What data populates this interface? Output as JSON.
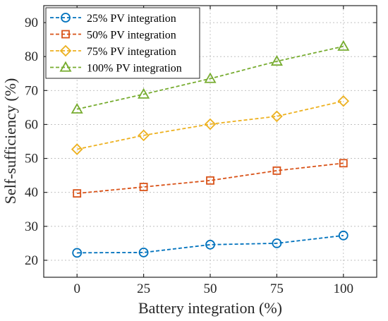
{
  "chart_data": {
    "type": "line",
    "xlabel": "Battery integration (%)",
    "ylabel": "Self-sufficiency (%)",
    "x": [
      0,
      25,
      50,
      75,
      100
    ],
    "x_ticks": [
      "0",
      "25",
      "50",
      "75",
      "100"
    ],
    "y_ticks": [
      "20",
      "30",
      "40",
      "50",
      "60",
      "70",
      "80",
      "90"
    ],
    "xlim": [
      -12.5,
      112.5
    ],
    "ylim": [
      15,
      95
    ],
    "grid": true,
    "legend_position": "top-left",
    "series": [
      {
        "name": "25% PV integration",
        "color": "#0072bd",
        "marker": "circle",
        "values": [
          22.2,
          22.3,
          24.6,
          25.0,
          27.3
        ]
      },
      {
        "name": "50% PV integration",
        "color": "#d95319",
        "marker": "square",
        "values": [
          39.7,
          41.6,
          43.5,
          46.4,
          48.6
        ]
      },
      {
        "name": "75% PV integration",
        "color": "#edb120",
        "marker": "diamond",
        "values": [
          52.7,
          56.8,
          60.1,
          62.4,
          66.9
        ]
      },
      {
        "name": "100% PV integration",
        "color": "#77ac30",
        "marker": "triangle",
        "values": [
          64.5,
          68.9,
          73.5,
          78.6,
          83.0
        ]
      }
    ]
  }
}
